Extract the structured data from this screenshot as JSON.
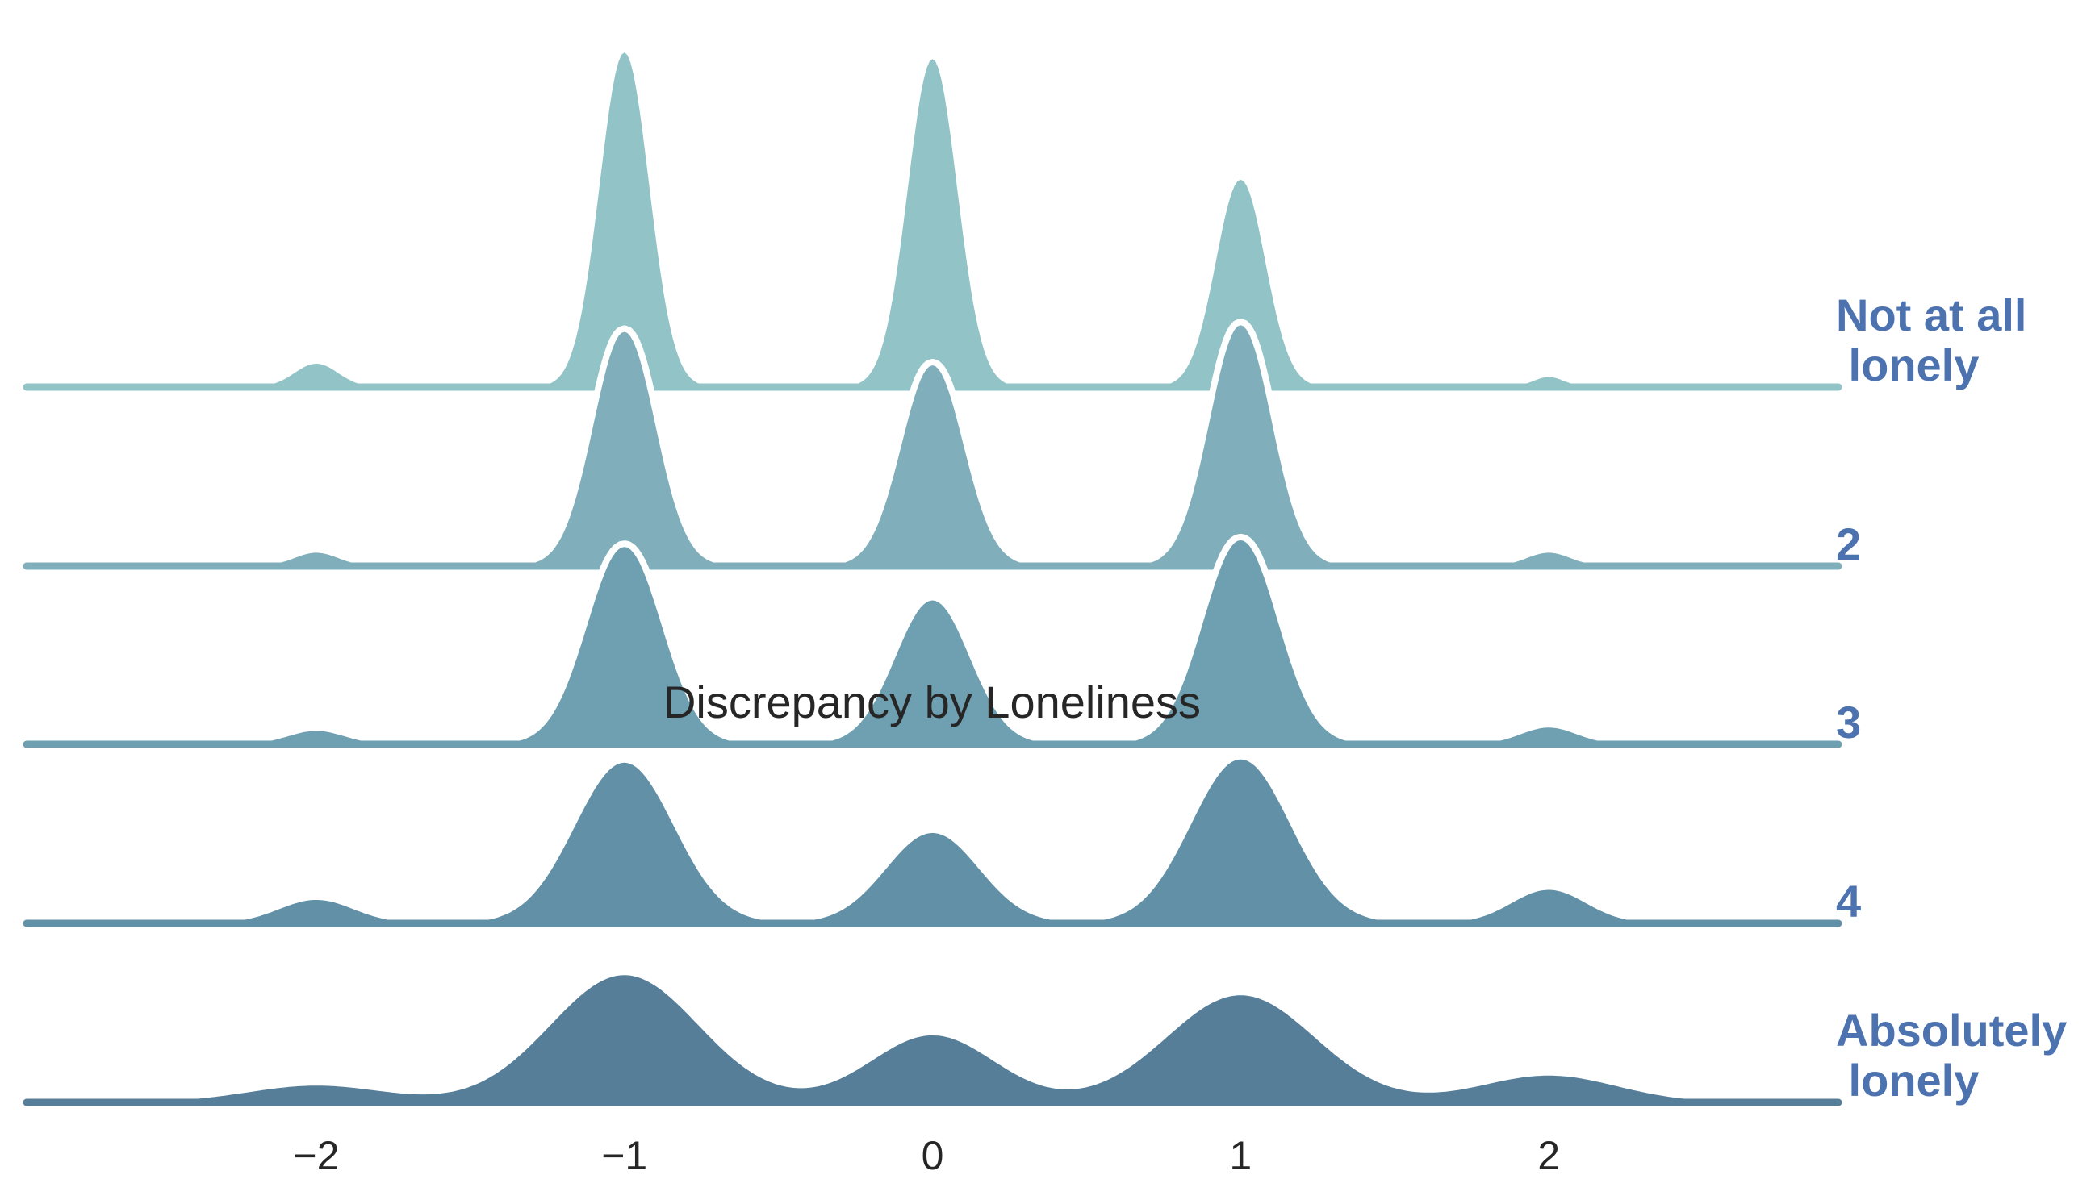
{
  "chart_data": {
    "type": "area",
    "subtype": "ridgeline",
    "title": "Discrepancy by Loneliness",
    "xlabel": "",
    "ylabel": "",
    "xlim": [
      -2.94,
      2.94
    ],
    "xticks": [
      -2,
      -1,
      0,
      1,
      2
    ],
    "xtick_labels": [
      "−2",
      "−1",
      "0",
      "1",
      "2"
    ],
    "grid": false,
    "label_color": "#4c72b0",
    "peak_values": [
      -2,
      -1,
      0,
      1,
      2
    ],
    "series": [
      {
        "label_lines": [
          "Not at all",
          " lonely"
        ],
        "color": "#92c3c7",
        "peak_heights": [
          0.07,
          1.0,
          0.98,
          0.62,
          0.03
        ],
        "peak_widths": [
          0.07,
          0.08,
          0.08,
          0.08,
          0.05
        ]
      },
      {
        "label_lines": [
          "2"
        ],
        "color": "#80afbb",
        "peak_heights": [
          0.04,
          0.7,
          0.6,
          0.72,
          0.04
        ],
        "peak_widths": [
          0.07,
          0.1,
          0.1,
          0.1,
          0.07
        ]
      },
      {
        "label_lines": [
          "3"
        ],
        "color": "#6fa0b1",
        "peak_heights": [
          0.04,
          0.59,
          0.43,
          0.61,
          0.05
        ],
        "peak_widths": [
          0.09,
          0.12,
          0.12,
          0.12,
          0.09
        ]
      },
      {
        "label_lines": [
          "4"
        ],
        "color": "#6190a7",
        "peak_heights": [
          0.07,
          0.48,
          0.27,
          0.49,
          0.1
        ],
        "peak_widths": [
          0.12,
          0.16,
          0.15,
          0.16,
          0.12
        ]
      },
      {
        "label_lines": [
          "Absolutely",
          " lonely"
        ],
        "color": "#567e99",
        "peak_heights": [
          0.05,
          0.38,
          0.2,
          0.32,
          0.08
        ],
        "peak_widths": [
          0.22,
          0.24,
          0.2,
          0.24,
          0.22
        ]
      }
    ]
  }
}
